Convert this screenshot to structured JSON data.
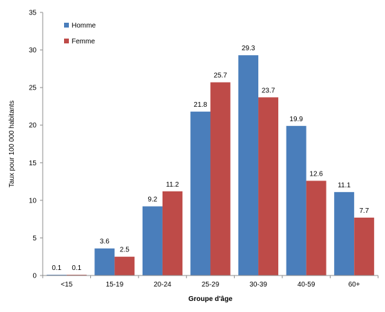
{
  "chart_data": {
    "type": "bar",
    "title": "",
    "xlabel": "Groupe d'âge",
    "ylabel": "Taux pour 100 000 habitants",
    "ylim": [
      0,
      35
    ],
    "yticks": [
      0,
      5,
      10,
      15,
      20,
      25,
      30,
      35
    ],
    "grid": false,
    "legend_position": "top-left",
    "categories": [
      "<15",
      "15-19",
      "20-24",
      "25-29",
      "30-39",
      "40-59",
      "60+"
    ],
    "series": [
      {
        "name": "Homme",
        "color": "#4a7ebb",
        "values": [
          0.1,
          3.6,
          9.2,
          21.8,
          29.3,
          19.9,
          11.1
        ]
      },
      {
        "name": "Femme",
        "color": "#be4b48",
        "values": [
          0.1,
          2.5,
          11.2,
          25.7,
          23.7,
          12.6,
          7.7
        ]
      }
    ],
    "data_labels": [
      [
        "0.1",
        "3.6",
        "9.2",
        "21.8",
        "29.3",
        "19.9",
        "11.1"
      ],
      [
        "0.1",
        "2.5",
        "11.2",
        "25.7",
        "23.7",
        "12.6",
        "7.7"
      ]
    ]
  }
}
